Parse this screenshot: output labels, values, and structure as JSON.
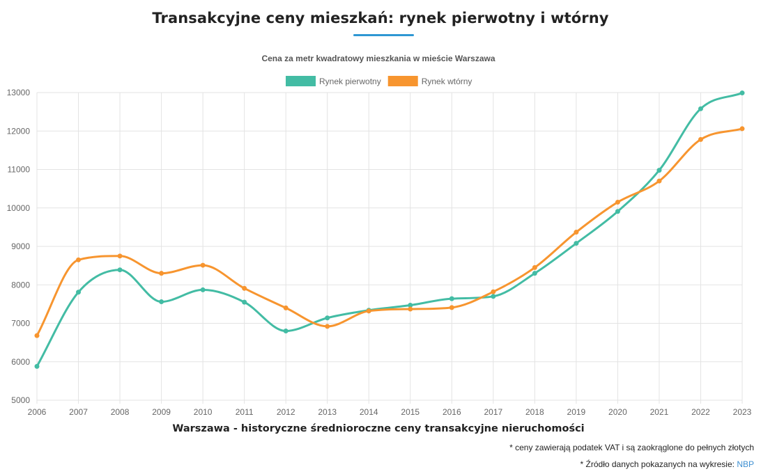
{
  "page": {
    "title": "Transakcyjne ceny mieszkań: rynek pierwotny i wtórny",
    "footnote_vat": "* ceny zawierają podatek VAT i są zaokrąglone do pełnych złotych",
    "footnote_source_prefix": "* Źródło danych pokazanych na wykresie:",
    "footnote_source_link": "NBP"
  },
  "chart_data": {
    "type": "line",
    "title": "Cena za metr kwadratowy mieszkania w mieście Warszawa",
    "xlabel": "Warszawa - historyczne średnioroczne ceny transakcyjne nieruchomości",
    "ylabel": "",
    "ylim": [
      5000,
      13000
    ],
    "yticks": [
      5000,
      6000,
      7000,
      8000,
      9000,
      10000,
      11000,
      12000,
      13000
    ],
    "categories": [
      "2006",
      "2007",
      "2008",
      "2009",
      "2010",
      "2011",
      "2012",
      "2013",
      "2014",
      "2015",
      "2016",
      "2017",
      "2018",
      "2019",
      "2020",
      "2021",
      "2022",
      "2023"
    ],
    "grid": true,
    "legend_position": "top",
    "series": [
      {
        "name": "Rynek pierwotny",
        "color": "#43bca4",
        "values": [
          5880,
          7810,
          8390,
          7560,
          7870,
          7550,
          6800,
          7140,
          7340,
          7470,
          7640,
          7700,
          8300,
          9080,
          9910,
          10980,
          12580,
          12990
        ]
      },
      {
        "name": "Rynek wtórny",
        "color": "#f7952f",
        "values": [
          6680,
          8650,
          8750,
          8300,
          8510,
          7910,
          7400,
          6920,
          7320,
          7370,
          7410,
          7820,
          8450,
          9370,
          10150,
          10700,
          11780,
          12060
        ]
      }
    ]
  }
}
